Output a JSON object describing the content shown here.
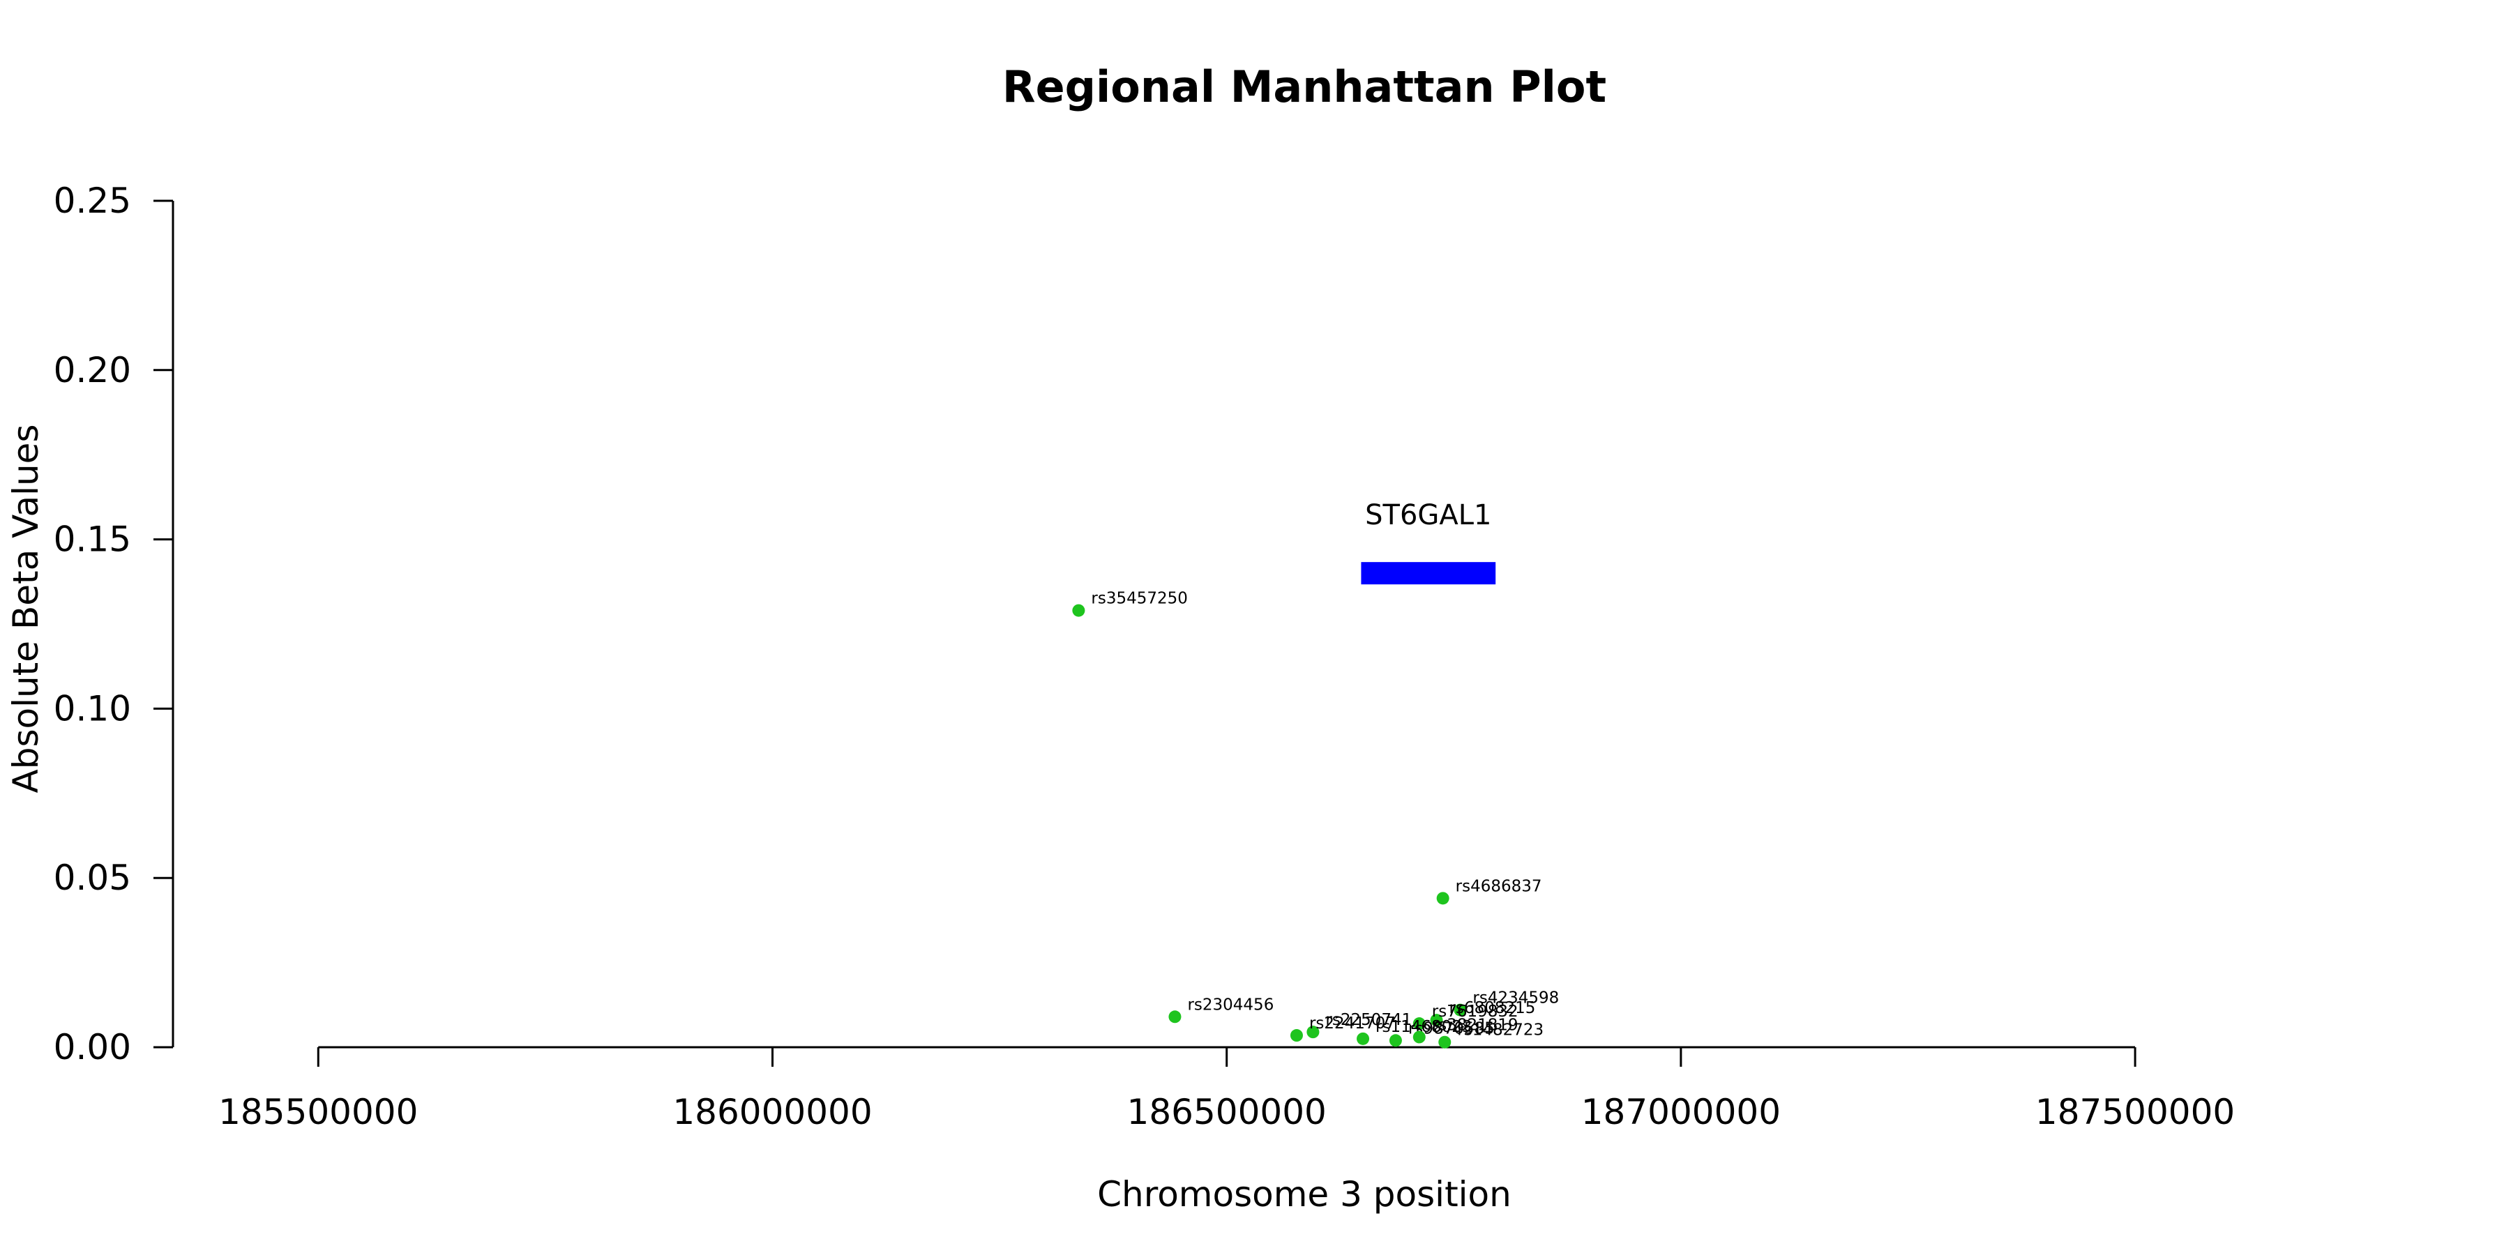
{
  "chart_data": {
    "type": "scatter",
    "title": "Regional Manhattan Plot",
    "xlabel": "Chromosome 3 position",
    "ylabel": "Absolute Beta Values",
    "xlim": [
      185337000,
      187837000
    ],
    "ylim": [
      0,
      0.25
    ],
    "x_ticks": [
      185500000,
      186000000,
      186500000,
      187000000,
      187500000
    ],
    "x_tick_labels": [
      "185500000",
      "186000000",
      "186500000",
      "187000000",
      "187500000"
    ],
    "y_ticks": [
      0,
      0.05,
      0.1,
      0.15,
      0.2,
      0.25
    ],
    "y_tick_labels": [
      "0.00",
      "0.05",
      "0.10",
      "0.15",
      "0.20",
      "0.25"
    ],
    "grid": false,
    "point_color": "#1ec41e",
    "points": [
      {
        "snp": "rs35457250",
        "x": 186337000,
        "y": 0.129
      },
      {
        "snp": "rs4686837",
        "x": 186738000,
        "y": 0.044
      },
      {
        "snp": "rs2304456",
        "x": 186443000,
        "y": 0.009
      },
      {
        "snp": "rs4234598",
        "x": 186757000,
        "y": 0.011
      },
      {
        "snp": "rs6808215",
        "x": 186731000,
        "y": 0.008
      },
      {
        "snp": "rs7619832",
        "x": 186712000,
        "y": 0.007
      },
      {
        "snp": "rs2250741",
        "x": 186595000,
        "y": 0.0045
      },
      {
        "snp": "rs2241707",
        "x": 186577000,
        "y": 0.0035
      },
      {
        "snp": "rs11468023",
        "x": 186650000,
        "y": 0.0025
      },
      {
        "snp": "rs9870585",
        "x": 186686000,
        "y": 0.002
      },
      {
        "snp": "rs3821819",
        "x": 186712000,
        "y": 0.003
      },
      {
        "snp": "rs1482723",
        "x": 186740000,
        "y": 0.0015
      }
    ],
    "genes": [
      {
        "name": "ST6GAL1",
        "start": 186648000,
        "end": 186796000,
        "color": "#0000ff"
      }
    ]
  }
}
